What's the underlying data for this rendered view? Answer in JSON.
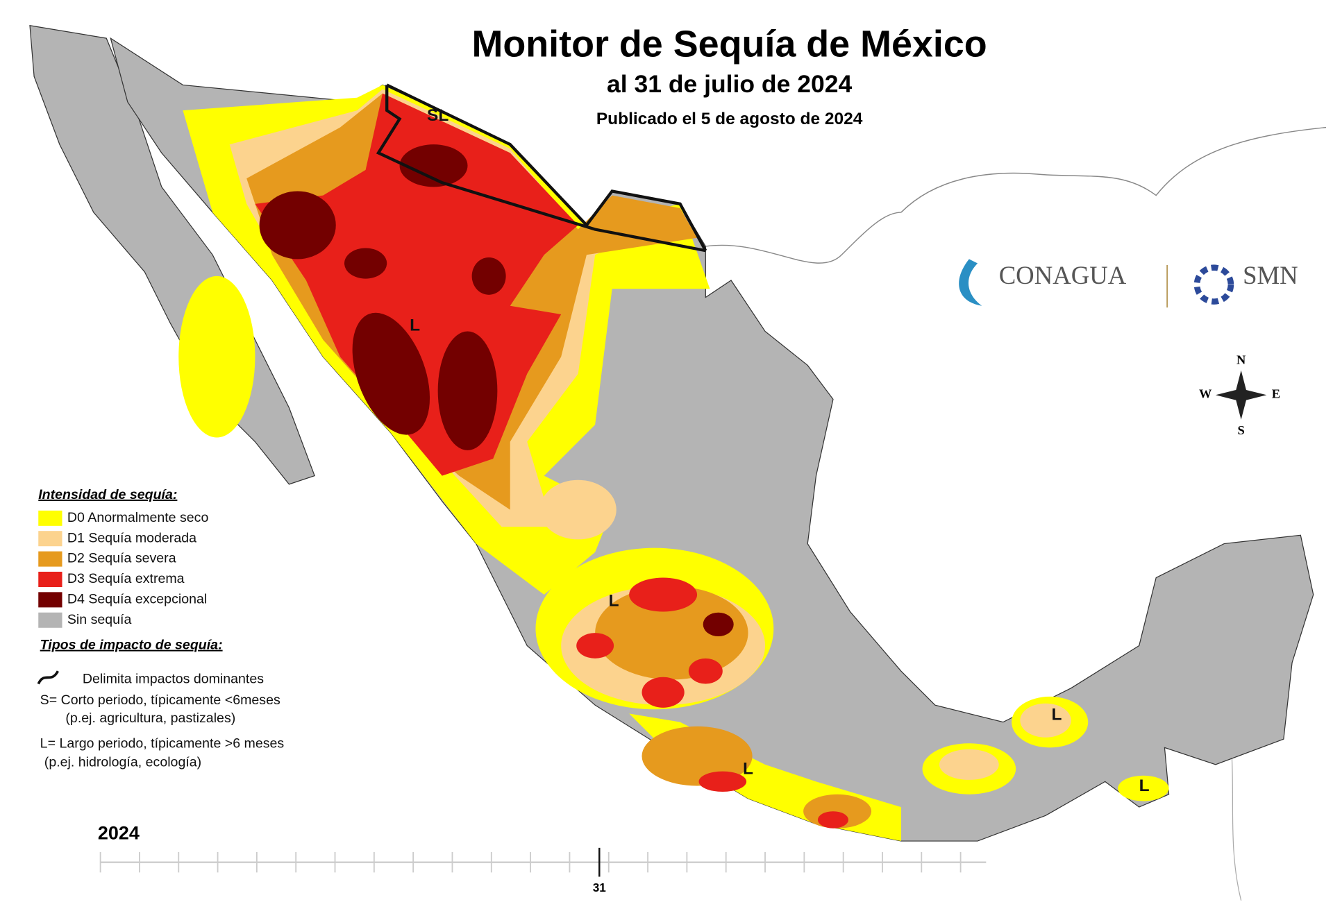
{
  "header": {
    "title": "Monitor de Sequía de México",
    "subtitle": "al 31 de julio de 2024",
    "published": "Publicado el 5 de agosto de 2024"
  },
  "logos": {
    "conagua": "CONAGUA",
    "smn": "SMN"
  },
  "compass": {
    "n": "N",
    "w": "W",
    "e": "E",
    "s": "S"
  },
  "legend": {
    "title": "Intensidad de sequía:",
    "items": [
      {
        "label": "D0 Anormalmente seco",
        "color": "#ffff00"
      },
      {
        "label": "D1 Sequía moderada",
        "color": "#fcd38e"
      },
      {
        "label": "D2 Sequía severa",
        "color": "#e69a1e"
      },
      {
        "label": "D3 Sequía extrema",
        "color": "#e8201a"
      },
      {
        "label": "D4 Sequía excepcional",
        "color": "#730000"
      },
      {
        "label": "Sin sequía",
        "color": "#b4b4b4"
      }
    ]
  },
  "impacts": {
    "title": "Tipos de impacto de sequía:",
    "boundary": "Delimita impactos dominantes",
    "short": "S= Corto periodo, típicamente <6meses",
    "short_examples": "(p.ej. agricultura, pastizales)",
    "long": "L= Largo periodo, típicamente >6 meses",
    "long_examples": "(p.ej. hidrología, ecología)"
  },
  "map_labels": [
    "SL",
    "L",
    "L",
    "L",
    "L",
    "L"
  ],
  "timeline": {
    "year": "2024",
    "current": "31"
  }
}
